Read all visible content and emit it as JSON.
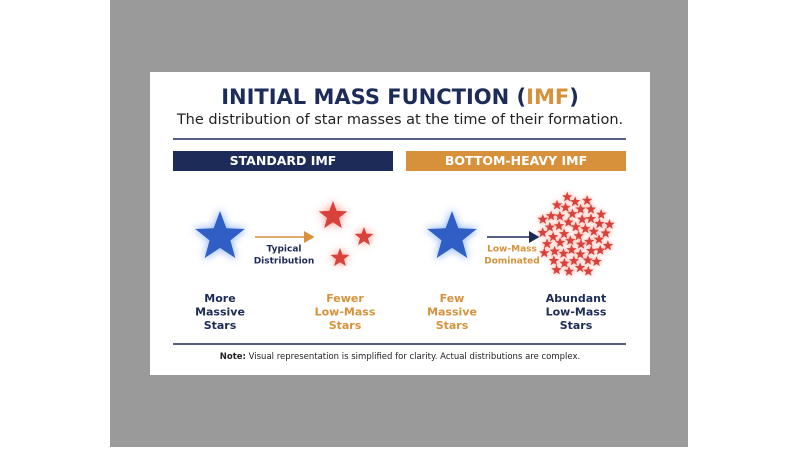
{
  "header": {
    "title_prefix": "INITIAL MASS FUNCTION (",
    "title_highlight": "IMF",
    "title_suffix": ")",
    "subtitle": "The distribution of star masses at the time of their formation."
  },
  "panels": [
    {
      "heading": "STANDARD IMF",
      "arrow_label": [
        "Typical",
        "Distribution"
      ],
      "left_label": [
        "More",
        "Massive",
        "Stars"
      ],
      "right_label": [
        "Fewer",
        "Low-Mass",
        "Stars"
      ]
    },
    {
      "heading": "BOTTOM-HEAVY IMF",
      "arrow_label": [
        "Low-Mass",
        "Dominated"
      ],
      "left_label": [
        "Few",
        "Massive",
        "Stars"
      ],
      "right_label": [
        "Abundant",
        "Low-Mass",
        "Stars"
      ]
    }
  ],
  "note": {
    "label": "Note:",
    "text": "Visual representation is simplified for clarity. Actual distributions are complex."
  }
}
